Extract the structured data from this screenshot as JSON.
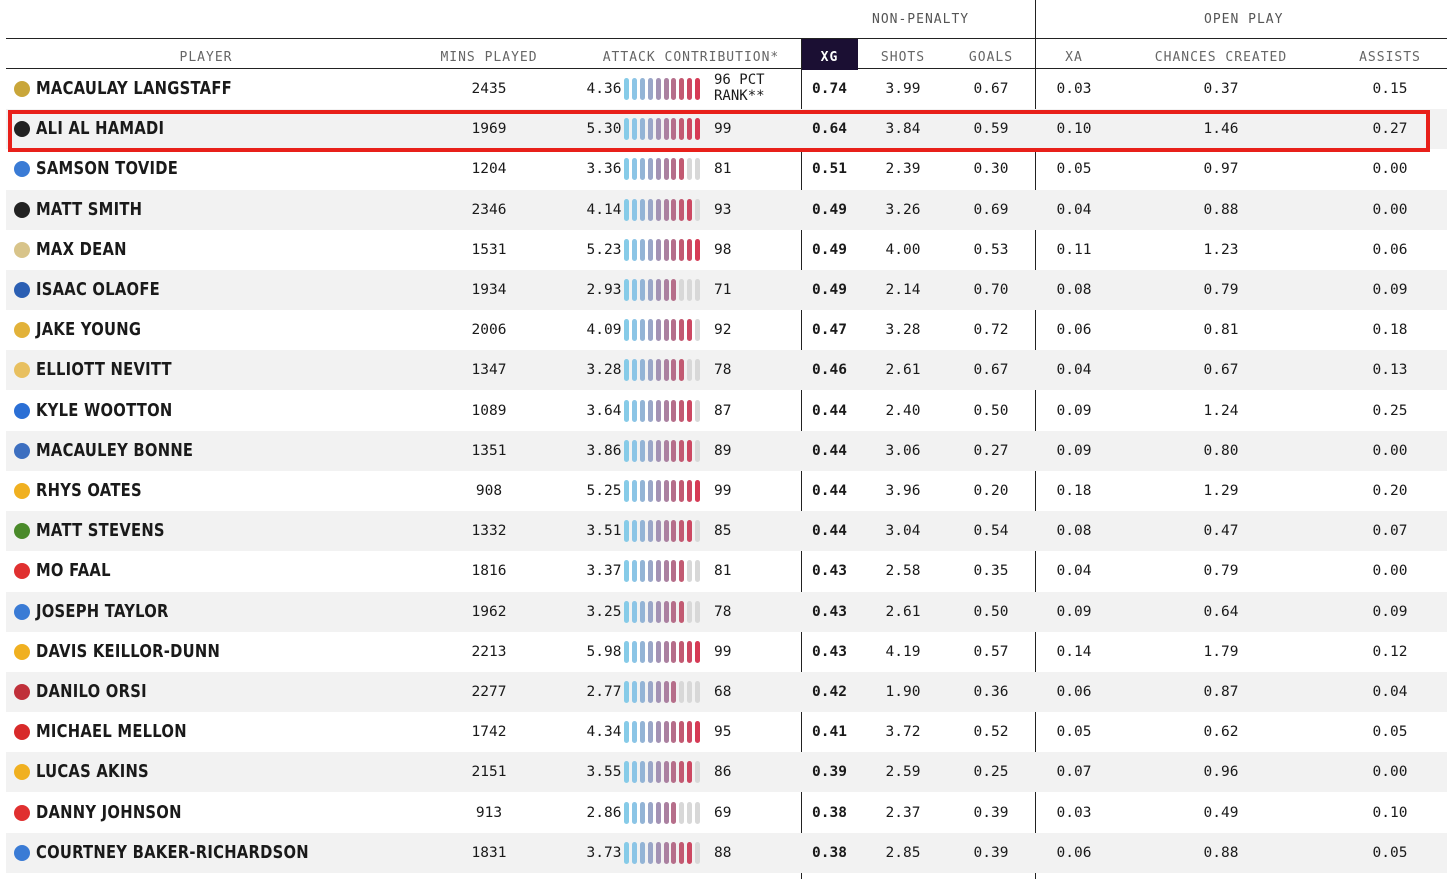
{
  "groups": {
    "non_penalty": "NON-PENALTY",
    "open_play": "OPEN PLAY"
  },
  "columns": {
    "player": "PLAYER",
    "mins": "MINS PLAYED",
    "attack": "ATTACK CONTRIBUTION*",
    "xg": "XG",
    "shots": "SHOTS",
    "goals": "GOALS",
    "xa": "XA",
    "chances": "CHANCES CREATED",
    "assists": "ASSISTS"
  },
  "pct_rank_label": "96 PCT RANK**",
  "colors": {
    "xg_header": "#1b0f33",
    "highlight": "#e8201a",
    "bar_low": "#86cbe8",
    "bar_mid": "#a48aa8",
    "bar_high": "#d23a55",
    "bar_empty": "#d8d8d8"
  },
  "players": [
    {
      "name": "Macaulay Langstaff",
      "mins": "2435",
      "attack": "4.36",
      "rank": "96",
      "xg": "0.74",
      "shots": "3.99",
      "goals": "0.67",
      "xa": "0.03",
      "chances": "0.37",
      "assists": "0.15",
      "badge": "#c9a63a"
    },
    {
      "name": "Ali Al Hamadi",
      "mins": "1969",
      "attack": "5.30",
      "rank": "99",
      "xg": "0.64",
      "shots": "3.84",
      "goals": "0.59",
      "xa": "0.10",
      "chances": "1.46",
      "assists": "0.27",
      "badge": "#222222"
    },
    {
      "name": "Samson Tovide",
      "mins": "1204",
      "attack": "3.36",
      "rank": "81",
      "xg": "0.51",
      "shots": "2.39",
      "goals": "0.30",
      "xa": "0.05",
      "chances": "0.97",
      "assists": "0.00",
      "badge": "#3a7bd5"
    },
    {
      "name": "Matt Smith",
      "mins": "2346",
      "attack": "4.14",
      "rank": "93",
      "xg": "0.49",
      "shots": "3.26",
      "goals": "0.69",
      "xa": "0.04",
      "chances": "0.88",
      "assists": "0.00",
      "badge": "#222222"
    },
    {
      "name": "Max Dean",
      "mins": "1531",
      "attack": "5.23",
      "rank": "98",
      "xg": "0.49",
      "shots": "4.00",
      "goals": "0.53",
      "xa": "0.11",
      "chances": "1.23",
      "assists": "0.06",
      "badge": "#d8c48a"
    },
    {
      "name": "Isaac Olaofe",
      "mins": "1934",
      "attack": "2.93",
      "rank": "71",
      "xg": "0.49",
      "shots": "2.14",
      "goals": "0.70",
      "xa": "0.08",
      "chances": "0.79",
      "assists": "0.09",
      "badge": "#2b5fb3"
    },
    {
      "name": "Jake Young",
      "mins": "2006",
      "attack": "4.09",
      "rank": "92",
      "xg": "0.47",
      "shots": "3.28",
      "goals": "0.72",
      "xa": "0.06",
      "chances": "0.81",
      "assists": "0.18",
      "badge": "#e2b23a"
    },
    {
      "name": "Elliott Nevitt",
      "mins": "1347",
      "attack": "3.28",
      "rank": "78",
      "xg": "0.46",
      "shots": "2.61",
      "goals": "0.67",
      "xa": "0.04",
      "chances": "0.67",
      "assists": "0.13",
      "badge": "#e8c060"
    },
    {
      "name": "Kyle Wootton",
      "mins": "1089",
      "attack": "3.64",
      "rank": "87",
      "xg": "0.44",
      "shots": "2.40",
      "goals": "0.50",
      "xa": "0.09",
      "chances": "1.24",
      "assists": "0.25",
      "badge": "#2b6fd5"
    },
    {
      "name": "Macauley Bonne",
      "mins": "1351",
      "attack": "3.86",
      "rank": "89",
      "xg": "0.44",
      "shots": "3.06",
      "goals": "0.27",
      "xa": "0.09",
      "chances": "0.80",
      "assists": "0.00",
      "badge": "#3d6fc0"
    },
    {
      "name": "Rhys Oates",
      "mins": "908",
      "attack": "5.25",
      "rank": "99",
      "xg": "0.44",
      "shots": "3.96",
      "goals": "0.20",
      "xa": "0.18",
      "chances": "1.29",
      "assists": "0.20",
      "badge": "#f0b020"
    },
    {
      "name": "Matt Stevens",
      "mins": "1332",
      "attack": "3.51",
      "rank": "85",
      "xg": "0.44",
      "shots": "3.04",
      "goals": "0.54",
      "xa": "0.08",
      "chances": "0.47",
      "assists": "0.07",
      "badge": "#4a8a2a"
    },
    {
      "name": "Mo Faal",
      "mins": "1816",
      "attack": "3.37",
      "rank": "81",
      "xg": "0.43",
      "shots": "2.58",
      "goals": "0.35",
      "xa": "0.04",
      "chances": "0.79",
      "assists": "0.00",
      "badge": "#e03030"
    },
    {
      "name": "Joseph Taylor",
      "mins": "1962",
      "attack": "3.25",
      "rank": "78",
      "xg": "0.43",
      "shots": "2.61",
      "goals": "0.50",
      "xa": "0.09",
      "chances": "0.64",
      "assists": "0.09",
      "badge": "#3a7bd5"
    },
    {
      "name": "Davis Keillor-Dunn",
      "mins": "2213",
      "attack": "5.98",
      "rank": "99",
      "xg": "0.43",
      "shots": "4.19",
      "goals": "0.57",
      "xa": "0.14",
      "chances": "1.79",
      "assists": "0.12",
      "badge": "#f0b020"
    },
    {
      "name": "Danilo Orsi",
      "mins": "2277",
      "attack": "2.77",
      "rank": "68",
      "xg": "0.42",
      "shots": "1.90",
      "goals": "0.36",
      "xa": "0.06",
      "chances": "0.87",
      "assists": "0.04",
      "badge": "#c0303a"
    },
    {
      "name": "Michael Mellon",
      "mins": "1742",
      "attack": "4.34",
      "rank": "95",
      "xg": "0.41",
      "shots": "3.72",
      "goals": "0.52",
      "xa": "0.05",
      "chances": "0.62",
      "assists": "0.05",
      "badge": "#d82a2a"
    },
    {
      "name": "Lucas Akins",
      "mins": "2151",
      "attack": "3.55",
      "rank": "86",
      "xg": "0.39",
      "shots": "2.59",
      "goals": "0.25",
      "xa": "0.07",
      "chances": "0.96",
      "assists": "0.00",
      "badge": "#f0b020"
    },
    {
      "name": "Danny Johnson",
      "mins": "913",
      "attack": "2.86",
      "rank": "69",
      "xg": "0.38",
      "shots": "2.37",
      "goals": "0.39",
      "xa": "0.03",
      "chances": "0.49",
      "assists": "0.10",
      "badge": "#e03030"
    },
    {
      "name": "Courtney Baker-Richardson",
      "mins": "1831",
      "attack": "3.73",
      "rank": "88",
      "xg": "0.38",
      "shots": "2.85",
      "goals": "0.39",
      "xa": "0.06",
      "chances": "0.88",
      "assists": "0.05",
      "badge": "#3a7bd5"
    }
  ]
}
